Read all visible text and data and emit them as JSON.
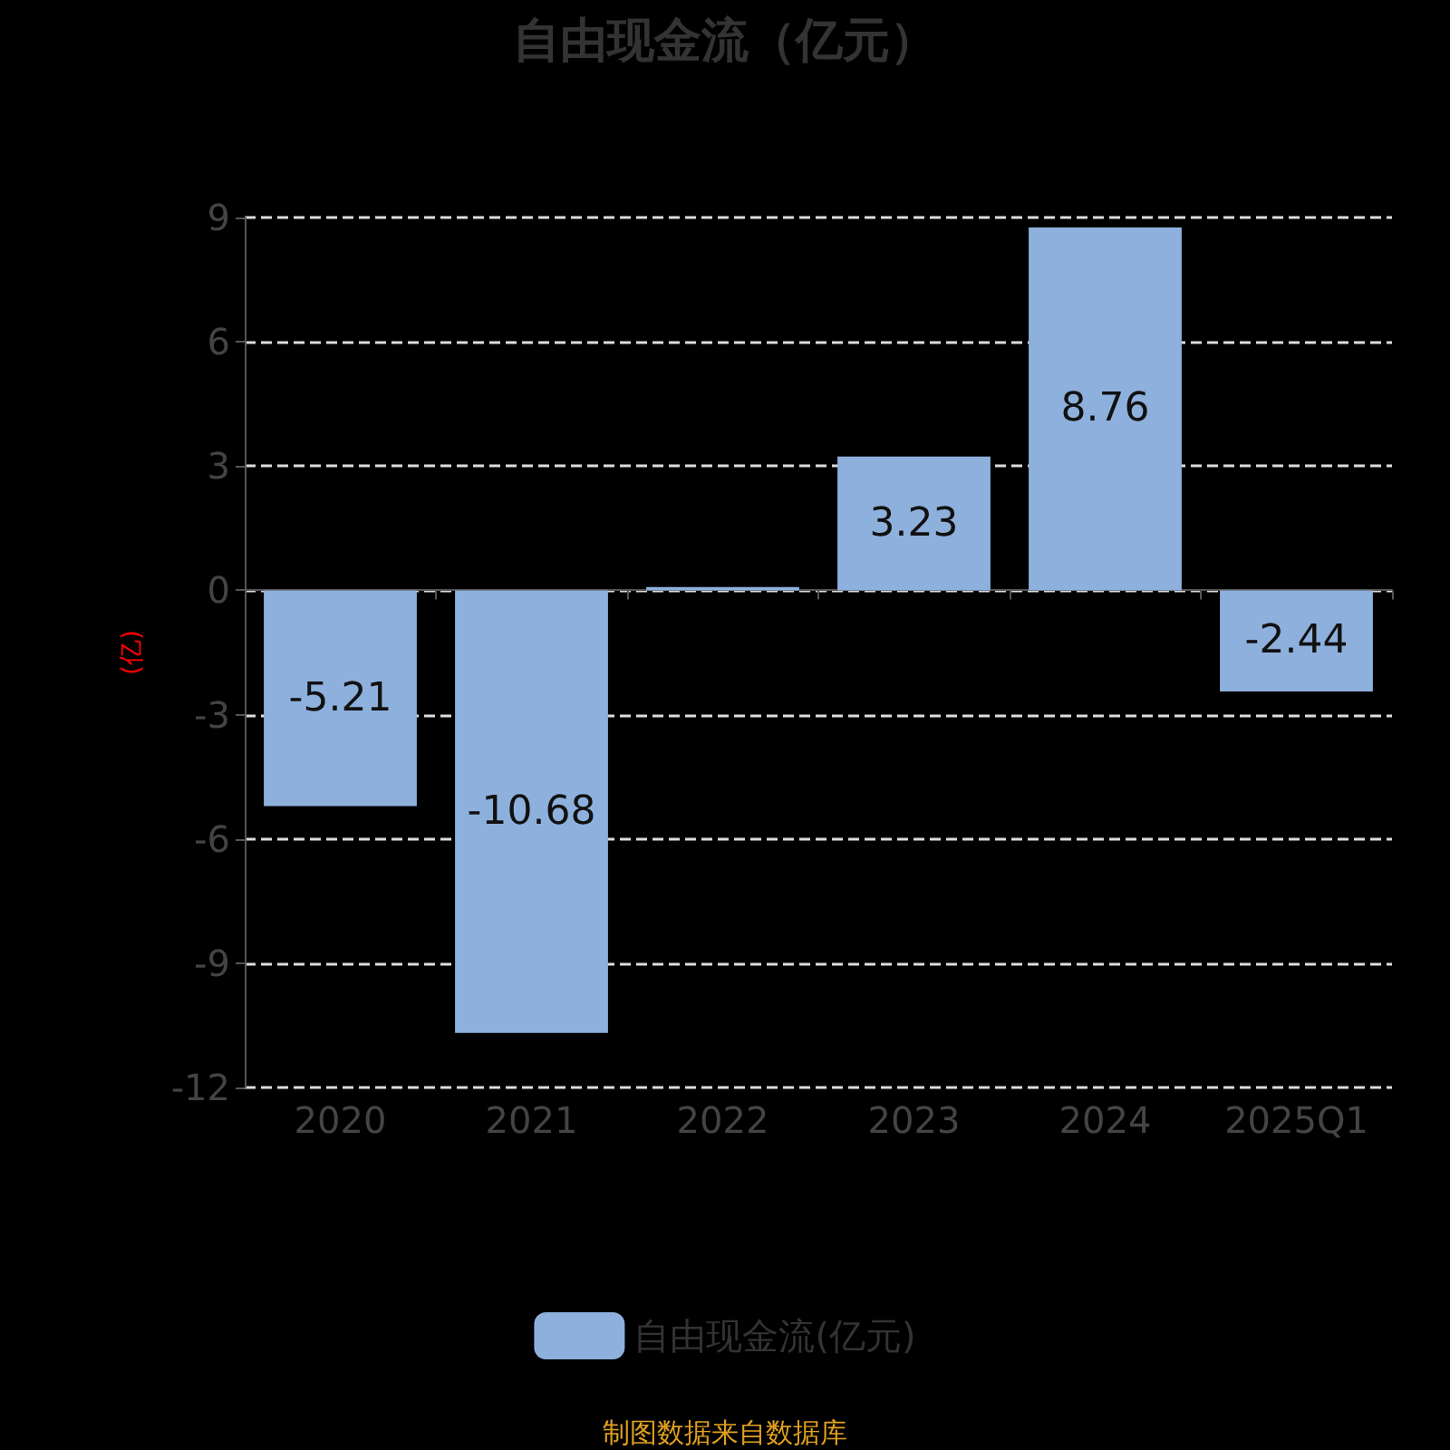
{
  "chart_data": {
    "type": "bar",
    "title": "自由现金流（亿元）",
    "ylabel": "(亿)",
    "categories": [
      "2020",
      "2021",
      "2022",
      "2023",
      "2024",
      "2025Q1"
    ],
    "series": [
      {
        "name": "自由现金流(亿元)",
        "color": "#8eb0dc",
        "values": [
          -5.21,
          -10.68,
          0.08,
          3.23,
          8.76,
          -2.44
        ],
        "value_labels": [
          "-5.21",
          "-10.68",
          null,
          "3.23",
          "8.76",
          "-2.44"
        ]
      }
    ],
    "ylim": [
      -12,
      9
    ],
    "yticks": [
      -12,
      -9,
      -6,
      -3,
      0,
      3,
      6,
      9
    ],
    "grid": "y",
    "legend": "bottom",
    "annotations": [
      "制图数据来自数据库"
    ]
  }
}
